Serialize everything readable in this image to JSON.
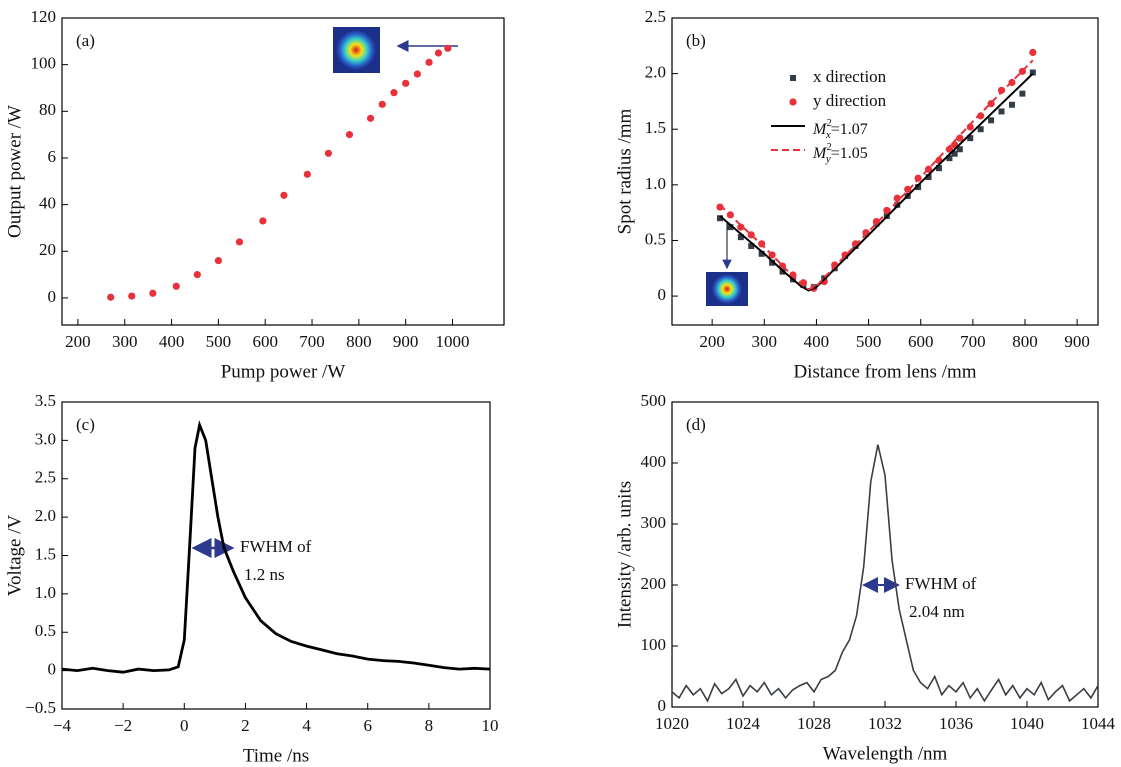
{
  "chart_data": [
    {
      "type": "scatter",
      "label": "(a)",
      "xlabel": "Pump power /W",
      "ylabel": "Output power /W",
      "x": [
        270,
        315,
        360,
        410,
        455,
        500,
        545,
        595,
        640,
        690,
        735,
        780,
        825,
        850,
        875,
        900,
        925,
        950,
        970,
        990
      ],
      "values": [
        0.3,
        0.8,
        2,
        5,
        10,
        16,
        24,
        33,
        44,
        53,
        62,
        70,
        77,
        83,
        88,
        92,
        96,
        101,
        105,
        107
      ],
      "marker": "circle",
      "color": "#e8313a",
      "xlim": [
        166,
        1110
      ],
      "ylim": [
        -11.6,
        120
      ],
      "xticks": [
        200,
        300,
        400,
        500,
        600,
        700,
        800,
        900,
        1000
      ],
      "yticks": [
        0,
        20,
        40,
        {
          "value": 60,
          "label": "6"
        },
        80,
        100,
        120
      ]
    },
    {
      "type": "scatter",
      "label": "(b)",
      "xlabel": "Distance from lens /mm",
      "ylabel": "Spot radius /mm",
      "series": [
        {
          "name": "x direction",
          "marker": "square",
          "color": "#333d47",
          "x": [
            215,
            235,
            255,
            275,
            295,
            315,
            335,
            355,
            375,
            395,
            415,
            435,
            455,
            475,
            495,
            515,
            535,
            555,
            575,
            595,
            615,
            635,
            655,
            665,
            675,
            695,
            715,
            735,
            755,
            775,
            795,
            815
          ],
          "values": [
            0.7,
            0.62,
            0.53,
            0.45,
            0.38,
            0.3,
            0.22,
            0.15,
            0.1,
            0.08,
            0.16,
            0.25,
            0.36,
            0.45,
            0.56,
            0.65,
            0.72,
            0.82,
            0.9,
            0.98,
            1.07,
            1.15,
            1.24,
            1.28,
            1.32,
            1.42,
            1.5,
            1.58,
            1.66,
            1.72,
            1.82,
            2.01
          ]
        },
        {
          "name": "y direction",
          "marker": "circle",
          "color": "#e8313a",
          "x": [
            215,
            235,
            255,
            275,
            295,
            315,
            335,
            355,
            375,
            395,
            415,
            435,
            455,
            475,
            495,
            515,
            535,
            555,
            575,
            595,
            615,
            635,
            655,
            665,
            675,
            695,
            715,
            735,
            755,
            775,
            795,
            815
          ],
          "values": [
            0.8,
            0.73,
            0.62,
            0.55,
            0.47,
            0.37,
            0.27,
            0.19,
            0.12,
            0.07,
            0.13,
            0.28,
            0.37,
            0.47,
            0.57,
            0.67,
            0.77,
            0.88,
            0.96,
            1.06,
            1.14,
            1.22,
            1.32,
            1.36,
            1.42,
            1.52,
            1.62,
            1.73,
            1.85,
            1.92,
            2.02,
            2.19
          ]
        },
        {
          "name": [
            "M",
            "2",
            "x",
            "=1.07"
          ],
          "line_style": "solid",
          "color": "#000000",
          "x": [
            215,
            250,
            300,
            340,
            370,
            385,
            400,
            430,
            500,
            600,
            700,
            815
          ],
          "values": [
            0.72,
            0.58,
            0.38,
            0.21,
            0.09,
            0.05,
            0.08,
            0.22,
            0.55,
            1.02,
            1.48,
            2.0
          ]
        },
        {
          "name": [
            "M",
            "2",
            "y",
            "=1.05"
          ],
          "line_style": "dashed",
          "color": "#e8313a",
          "x": [
            215,
            250,
            300,
            340,
            370,
            385,
            400,
            430,
            500,
            600,
            700,
            815
          ],
          "values": [
            0.82,
            0.66,
            0.44,
            0.25,
            0.11,
            0.06,
            0.09,
            0.24,
            0.58,
            1.07,
            1.57,
            2.12
          ]
        }
      ],
      "xlim": [
        123,
        940
      ],
      "ylim": [
        -0.26,
        2.5
      ],
      "xticks": [
        200,
        300,
        400,
        500,
        600,
        700,
        800,
        900
      ],
      "yticks": [
        0,
        0.5,
        {
          "value": 1,
          "label": "1.0"
        },
        1.5,
        {
          "value": 2,
          "label": "2.0"
        },
        2.5
      ]
    },
    {
      "type": "line",
      "label": "(c)",
      "xlabel": "Time /ns",
      "ylabel": "Voltage /V",
      "annotation": [
        "FWHM of",
        "1.2 ns"
      ],
      "color": "#000000",
      "x": [
        -4,
        -3.5,
        -3,
        -2.5,
        -2,
        -1.5,
        -1,
        -0.5,
        -0.2,
        0,
        0.2,
        0.35,
        0.5,
        0.7,
        0.9,
        1.1,
        1.3,
        1.6,
        2,
        2.5,
        3,
        3.5,
        4,
        4.5,
        5,
        5.5,
        6,
        6.5,
        7,
        7.5,
        8,
        8.5,
        9,
        9.5,
        10
      ],
      "values": [
        0.02,
        0,
        0.03,
        0,
        -0.02,
        0.02,
        0,
        0.01,
        0.05,
        0.4,
        1.8,
        2.9,
        3.2,
        3.0,
        2.5,
        2.0,
        1.6,
        1.3,
        0.95,
        0.65,
        0.48,
        0.38,
        0.32,
        0.27,
        0.22,
        0.19,
        0.15,
        0.13,
        0.12,
        0.1,
        0.07,
        0.04,
        0.02,
        0.03,
        0.02
      ],
      "xlim": [
        -4,
        10
      ],
      "ylim": [
        -0.5,
        3.5
      ],
      "xticks": [
        {
          "value": -4,
          "label": "−4"
        },
        {
          "value": -2,
          "label": "−2"
        },
        0,
        2,
        4,
        6,
        8,
        10
      ],
      "yticks": [
        {
          "value": -0.5,
          "label": "−0.5"
        },
        0,
        0.5,
        {
          "value": 1,
          "label": "1.0"
        },
        1.5,
        {
          "value": 2,
          "label": "2.0"
        },
        2.5,
        {
          "value": 3,
          "label": "3.0"
        },
        3.5
      ]
    },
    {
      "type": "line",
      "label": "(d)",
      "xlabel": "Wavelength /nm",
      "ylabel": "Intensity /arb. units",
      "annotation": [
        "FWHM of",
        "2.04 nm"
      ],
      "color": "#3a3f45",
      "x": [
        1020,
        1020.4,
        1020.8,
        1021.2,
        1021.6,
        1022,
        1022.4,
        1022.8,
        1023.2,
        1023.6,
        1024,
        1024.4,
        1024.8,
        1025.2,
        1025.6,
        1026,
        1026.4,
        1026.8,
        1027.2,
        1027.6,
        1028,
        1028.4,
        1028.8,
        1029.2,
        1029.6,
        1030,
        1030.4,
        1030.8,
        1031.2,
        1031.6,
        1032,
        1032.4,
        1032.8,
        1033.2,
        1033.6,
        1034,
        1034.4,
        1034.8,
        1035.2,
        1035.6,
        1036,
        1036.4,
        1036.8,
        1037.2,
        1037.6,
        1038,
        1038.4,
        1038.8,
        1039.2,
        1039.6,
        1040,
        1040.4,
        1040.8,
        1041.2,
        1041.6,
        1042,
        1042.4,
        1042.8,
        1043.2,
        1043.6,
        1044
      ],
      "values": [
        25,
        15,
        35,
        20,
        30,
        10,
        38,
        22,
        30,
        45,
        18,
        35,
        25,
        40,
        20,
        30,
        15,
        28,
        35,
        40,
        25,
        45,
        50,
        60,
        90,
        110,
        150,
        230,
        370,
        430,
        380,
        240,
        160,
        110,
        60,
        40,
        30,
        50,
        20,
        35,
        25,
        40,
        15,
        30,
        10,
        28,
        45,
        20,
        35,
        15,
        30,
        20,
        40,
        12,
        25,
        35,
        10,
        20,
        30,
        15,
        35
      ],
      "xlim": [
        1020,
        1044
      ],
      "ylim": [
        0,
        500
      ],
      "xticks": [
        1020,
        1024,
        1028,
        1032,
        1036,
        1040,
        1044
      ],
      "yticks": [
        0,
        100,
        200,
        300,
        400,
        500
      ]
    }
  ]
}
